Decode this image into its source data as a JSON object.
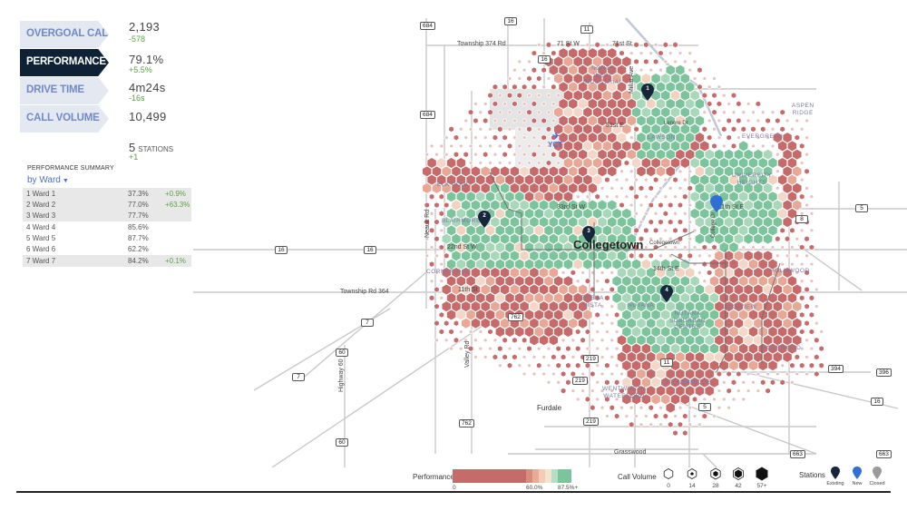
{
  "metrics": [
    {
      "label": "OVERGOAL CALLS",
      "value": "2,193",
      "delta": "-578",
      "active": false
    },
    {
      "label": "PERFORMANCE",
      "value": "79.1%",
      "delta": "+5.5%",
      "active": true
    },
    {
      "label": "DRIVE TIME",
      "value": "4m24s",
      "delta": "-16s",
      "active": false
    },
    {
      "label": "CALL VOLUME",
      "value": "10,499",
      "delta": "",
      "active": false
    }
  ],
  "stations": {
    "count": "5",
    "label": "STATIONS",
    "delta": "+1"
  },
  "summary": {
    "heading": "PERFORMANCE SUMMARY",
    "group_by": "by Ward",
    "rows": [
      {
        "name": "1 Ward 1",
        "pct": "37.3%",
        "delta": "+0.9%"
      },
      {
        "name": "2 Ward 2",
        "pct": "77.0%",
        "delta": "+63.3%"
      },
      {
        "name": "3 Ward 3",
        "pct": "77.7%",
        "delta": ""
      },
      {
        "name": "4 Ward 4",
        "pct": "85.6%",
        "delta": ""
      },
      {
        "name": "5 Ward 5",
        "pct": "87.7%",
        "delta": ""
      },
      {
        "name": "6 Ward 6",
        "pct": "62.2%",
        "delta": ""
      },
      {
        "name": "7 Ward 7",
        "pct": "84.2%",
        "delta": "+0.1%"
      }
    ]
  },
  "map": {
    "city": "Collegetown",
    "airport": "YCT",
    "roads": {
      "township_374": "Township 374 Rd",
      "township_364": "Township Rd 364",
      "ave_71": "71 St W",
      "ave_71e": "71st St",
      "st_51": "51st E",
      "st_33": "33rd St W",
      "st_22": "22nd St W",
      "st_11w": "11th St",
      "st_14e": "14th St E",
      "st_11e": "11th St E",
      "grasswood": "Grasswood",
      "neault": "Neault Rd",
      "valley": "Valley Rd",
      "hwy60": "Highway 60",
      "millar": "Millar Ave",
      "lenore": "Lenore Dr",
      "college": "College Dr",
      "collegetown_small": "Collegetown"
    },
    "towns": {
      "furdale": "Furdale"
    },
    "neighbourhoods": [
      {
        "key": "nw",
        "text": "NORTH\nWEST\nINDUSTRIAL"
      },
      {
        "key": "aspen",
        "text": "ASPEN\nRIDGE"
      },
      {
        "key": "lawson",
        "text": "LAWSON"
      },
      {
        "key": "evergreen",
        "text": "EVERGREEN"
      },
      {
        "key": "university",
        "text": "UNIVERSITY\nHEIGHTS"
      },
      {
        "key": "elk",
        "text": "ELK POINT"
      },
      {
        "key": "blairmore",
        "text": "BLAIRMORE"
      },
      {
        "key": "holmwood",
        "text": "HOLMWOOD"
      },
      {
        "key": "cornbridge",
        "text": "CORNBRIDGE"
      },
      {
        "key": "buena",
        "text": "BUENA\nVISTA"
      },
      {
        "key": "nutana",
        "text": "NUTANA"
      },
      {
        "key": "nutana_sc",
        "text": "NUTANA\nSUBURBAN\nCENTRE"
      },
      {
        "key": "lakeview",
        "text": "LAKEVIEW"
      },
      {
        "key": "rosewood",
        "text": "ROSEWOOD"
      },
      {
        "key": "stonebridge",
        "text": "STONEBRIDGE"
      },
      {
        "key": "wentworth",
        "text": "WENTWORTH\nWATERFORD"
      }
    ],
    "highways": [
      "684",
      "16",
      "11",
      "16",
      "684",
      "16",
      "16",
      "5",
      "8",
      "7",
      "7",
      "60",
      "60",
      "762",
      "762",
      "219",
      "219",
      "11",
      "394",
      "396",
      "16",
      "663",
      "663",
      "5",
      "219"
    ],
    "markers": [
      {
        "num": "1",
        "type": "existing"
      },
      {
        "num": "2",
        "type": "existing"
      },
      {
        "num": "3",
        "type": "existing"
      },
      {
        "num": "4",
        "type": "existing"
      },
      {
        "num": "",
        "type": "new"
      }
    ]
  },
  "legend": {
    "performance_label": "Performance",
    "perf_colors": [
      "#c76a6a",
      "#c76a6a",
      "#d98b7c",
      "#e9ab98",
      "#f5cbb5",
      "#f3e4d2",
      "#b7ddc6",
      "#7cc49b"
    ],
    "perf_ticks": [
      "0",
      "60.0%",
      "87.5%+"
    ],
    "volume_label": "Call Volume",
    "volume_steps": [
      "0",
      "14",
      "28",
      "42",
      "57+"
    ],
    "stations_label": "Stations",
    "station_types": [
      "Existing",
      "New",
      "Closed"
    ],
    "station_colors": [
      "#17263a",
      "#2f6fd6",
      "#9a9a9a"
    ]
  },
  "colors": {
    "accent_dark": "#0f2235",
    "tab_bg": "#e3e8f1",
    "tab_text": "#7189c7",
    "positive": "#5aa246",
    "good": "#7cc49b",
    "bad": "#c76a6a"
  }
}
